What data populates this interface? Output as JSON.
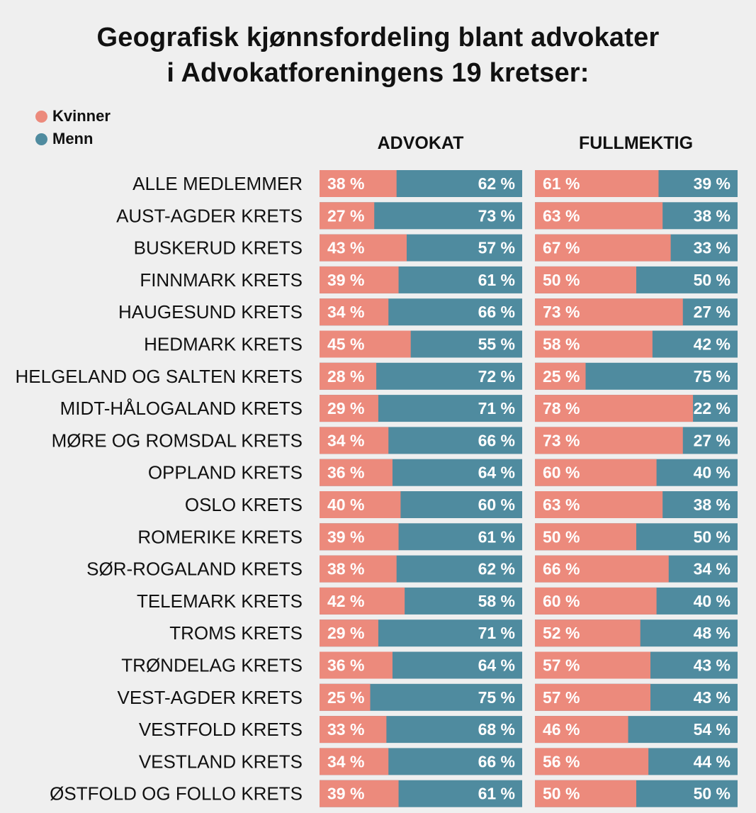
{
  "title": {
    "line1": "Geografisk kjønnsfordeling blant advokater",
    "line2": "i Advokatforeningens 19 kretser:"
  },
  "legend": [
    {
      "label": "Kvinner",
      "color": "#ec8a7c"
    },
    {
      "label": "Menn",
      "color": "#4f8b9f"
    }
  ],
  "chart_data": {
    "type": "bar",
    "orientation": "horizontal",
    "stacked": true,
    "percent_format": "{v} %",
    "groups": [
      "ADVOKAT",
      "FULLMEKTIG"
    ],
    "series": [
      {
        "name": "Kvinner",
        "color": "#ec8a7c"
      },
      {
        "name": "Menn",
        "color": "#4f8b9f"
      }
    ],
    "rows": [
      {
        "label": "ALLE MEDLEMMER",
        "advokat": [
          38,
          62
        ],
        "fullmektig": [
          61,
          39
        ]
      },
      {
        "label": "AUST-AGDER KRETS",
        "advokat": [
          27,
          73
        ],
        "fullmektig": [
          63,
          38
        ]
      },
      {
        "label": "BUSKERUD KRETS",
        "advokat": [
          43,
          57
        ],
        "fullmektig": [
          67,
          33
        ]
      },
      {
        "label": "FINNMARK KRETS",
        "advokat": [
          39,
          61
        ],
        "fullmektig": [
          50,
          50
        ]
      },
      {
        "label": "HAUGESUND KRETS",
        "advokat": [
          34,
          66
        ],
        "fullmektig": [
          73,
          27
        ]
      },
      {
        "label": "HEDMARK KRETS",
        "advokat": [
          45,
          55
        ],
        "fullmektig": [
          58,
          42
        ]
      },
      {
        "label": "HELGELAND OG SALTEN KRETS",
        "advokat": [
          28,
          72
        ],
        "fullmektig": [
          25,
          75
        ]
      },
      {
        "label": "MIDT-HÅLOGALAND KRETS",
        "advokat": [
          29,
          71
        ],
        "fullmektig": [
          78,
          22
        ]
      },
      {
        "label": "MØRE OG ROMSDAL KRETS",
        "advokat": [
          34,
          66
        ],
        "fullmektig": [
          73,
          27
        ]
      },
      {
        "label": "OPPLAND KRETS",
        "advokat": [
          36,
          64
        ],
        "fullmektig": [
          60,
          40
        ]
      },
      {
        "label": "OSLO KRETS",
        "advokat": [
          40,
          60
        ],
        "fullmektig": [
          63,
          38
        ]
      },
      {
        "label": "ROMERIKE KRETS",
        "advokat": [
          39,
          61
        ],
        "fullmektig": [
          50,
          50
        ]
      },
      {
        "label": "SØR-ROGALAND KRETS",
        "advokat": [
          38,
          62
        ],
        "fullmektig": [
          66,
          34
        ]
      },
      {
        "label": "TELEMARK KRETS",
        "advokat": [
          42,
          58
        ],
        "fullmektig": [
          60,
          40
        ]
      },
      {
        "label": "TROMS KRETS",
        "advokat": [
          29,
          71
        ],
        "fullmektig": [
          52,
          48
        ]
      },
      {
        "label": "TRØNDELAG KRETS",
        "advokat": [
          36,
          64
        ],
        "fullmektig": [
          57,
          43
        ]
      },
      {
        "label": "VEST-AGDER KRETS",
        "advokat": [
          25,
          75
        ],
        "fullmektig": [
          57,
          43
        ]
      },
      {
        "label": "VESTFOLD KRETS",
        "advokat": [
          33,
          68
        ],
        "fullmektig": [
          46,
          54
        ]
      },
      {
        "label": "VESTLAND KRETS",
        "advokat": [
          34,
          66
        ],
        "fullmektig": [
          56,
          44
        ]
      },
      {
        "label": "ØSTFOLD OG FOLLO KRETS",
        "advokat": [
          39,
          61
        ],
        "fullmektig": [
          50,
          50
        ]
      }
    ]
  }
}
